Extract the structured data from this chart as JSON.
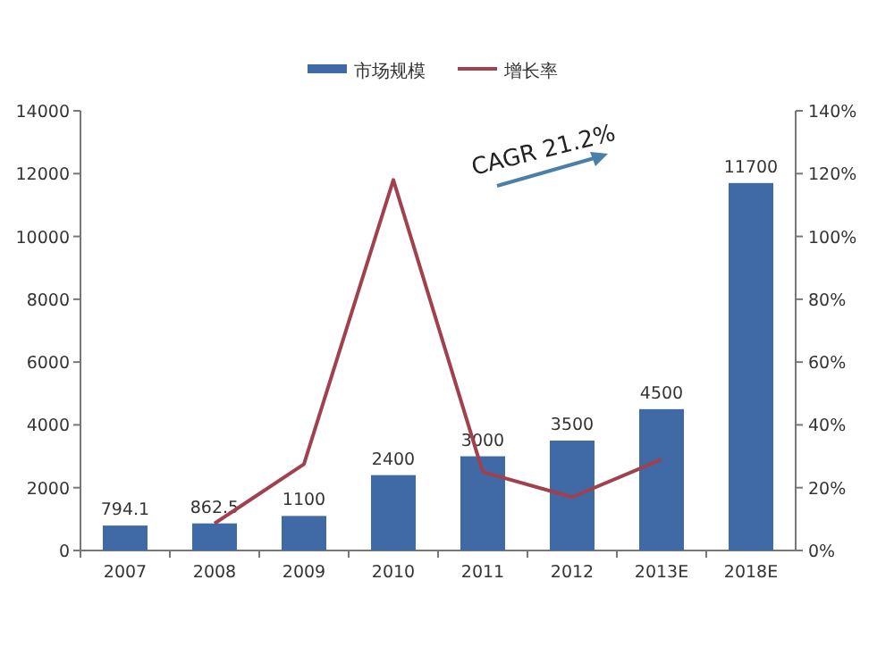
{
  "chart_data": {
    "type": "bar",
    "categories": [
      "2007",
      "2008",
      "2009",
      "2010",
      "2011",
      "2012",
      "2013E",
      "2018E"
    ],
    "series": [
      {
        "name": "市场规模",
        "color": "#3f6aa6",
        "values": [
          794.1,
          862.5,
          1100,
          2400,
          3000,
          3500,
          4500,
          11700
        ],
        "value_labels": [
          "794.1",
          "862.5",
          "1100",
          "2400",
          "3000",
          "3500",
          "4500",
          "11700"
        ]
      },
      {
        "name": "增长率",
        "type": "line",
        "axis": "y2",
        "color": "#a0414f",
        "values": [
          null,
          8.6,
          27.5,
          118,
          25,
          17,
          29,
          null
        ]
      }
    ],
    "ylim": [
      0,
      14000
    ],
    "yticks": [
      0,
      2000,
      4000,
      6000,
      8000,
      10000,
      12000,
      14000
    ],
    "y2lim": [
      0,
      140
    ],
    "y2ticks": [
      {
        "value": 0,
        "label": "0%"
      },
      {
        "value": 20,
        "label": "20%"
      },
      {
        "value": 40,
        "label": "40%"
      },
      {
        "value": 60,
        "label": "60%"
      },
      {
        "value": 80,
        "label": "80%"
      },
      {
        "value": 100,
        "label": "100%"
      },
      {
        "value": 120,
        "label": "120%"
      },
      {
        "value": 140,
        "label": "140%"
      }
    ],
    "legend": "top",
    "annotations": [
      "CAGR 21.2%"
    ]
  }
}
